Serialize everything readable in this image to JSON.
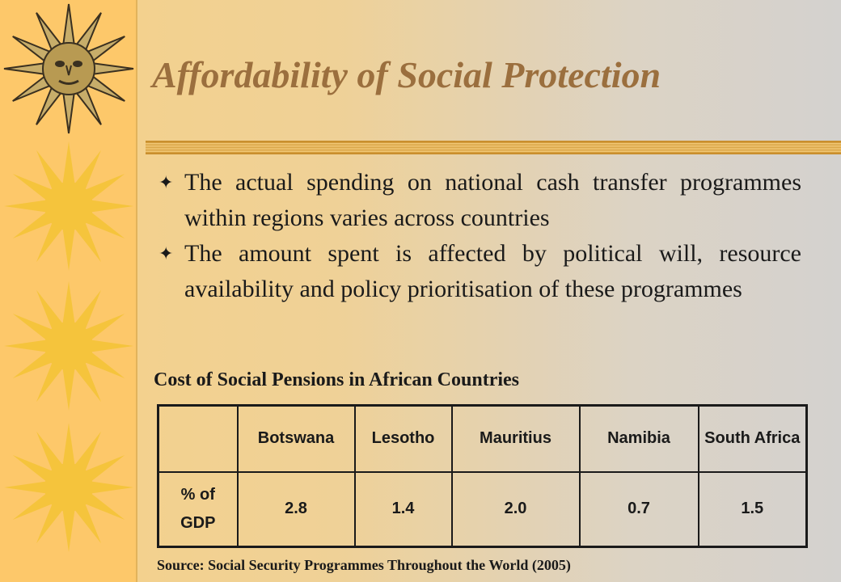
{
  "slide": {
    "title": "Affordability of Social Protection",
    "bullets": [
      "The actual spending on national cash transfer programmes within regions varies across countries",
      "The amount spent is affected by political will, resource availability and policy prioritisation of these programmes"
    ],
    "bullet_glyph": "✦",
    "table_caption": "Cost of Social Pensions in African Countries",
    "source": "Source: Social Security Programmes Throughout the World (2005)"
  },
  "table": {
    "corner": "",
    "columns": [
      "Botswana",
      "Lesotho",
      "Mauritius",
      "Namibia",
      "South Africa"
    ],
    "row_label": "% of GDP",
    "values": [
      "2.8",
      "1.4",
      "2.0",
      "0.7",
      "1.5"
    ]
  },
  "decor": {
    "band_color": "#fdc86a",
    "sun_color": "#f5c43c",
    "sun_face_color": "#b89a52",
    "title_color": "#9b6f3e"
  }
}
